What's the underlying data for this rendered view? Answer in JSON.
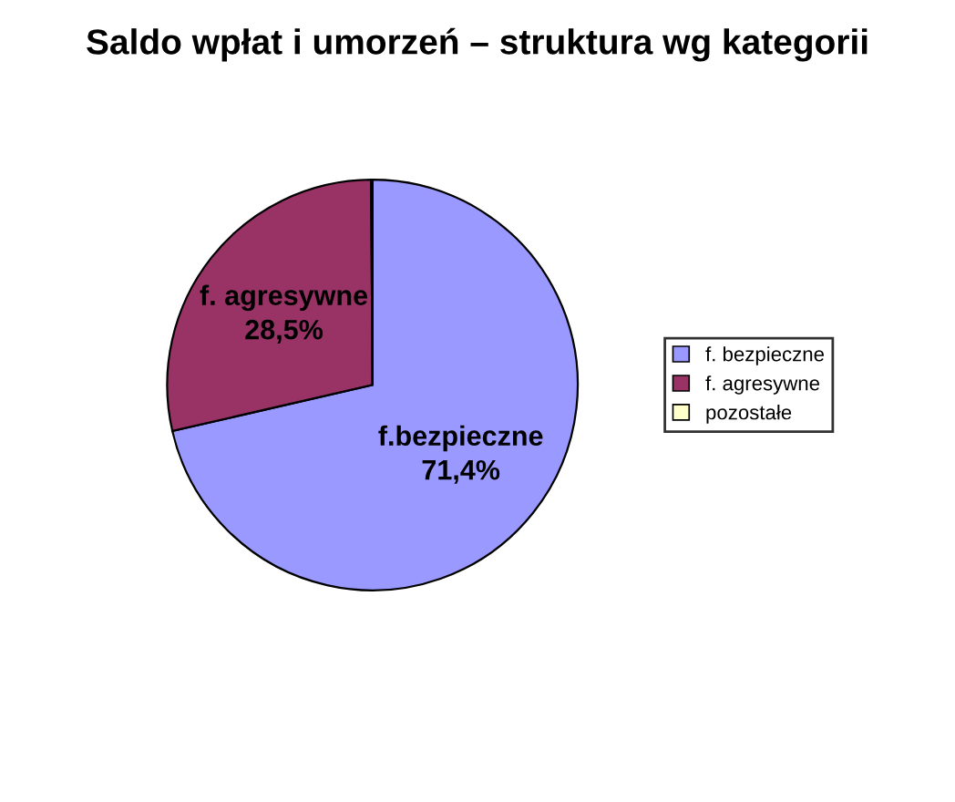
{
  "chart_data": {
    "type": "pie",
    "title": "Saldo wpłat i umorzeń – struktura wg kategorii",
    "categories": [
      "f. bezpieczne",
      "f. agresywne",
      "pozostałe"
    ],
    "values": [
      71.4,
      28.5,
      0.1
    ],
    "colors": [
      "#9999ff",
      "#993366",
      "#ffffcc"
    ],
    "value_labels": [
      "f.bezpieczne\n71,4%",
      "f. agresywne\n28,5%",
      null
    ],
    "legend": "right"
  }
}
